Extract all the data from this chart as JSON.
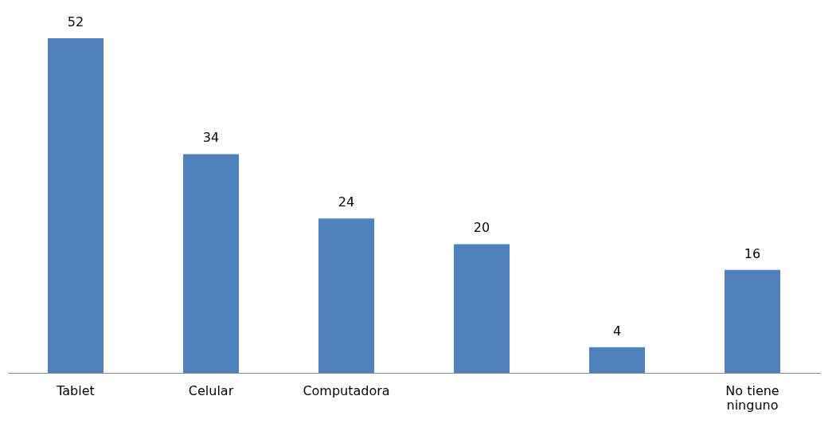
{
  "chart_data": {
    "type": "bar",
    "categories": [
      "Tablet",
      "Celular",
      "Computadora",
      null,
      null,
      "No tiene ninguno"
    ],
    "values": [
      52,
      34,
      24,
      20,
      4,
      16
    ],
    "color": "#4f81bd",
    "data_labels": true
  }
}
